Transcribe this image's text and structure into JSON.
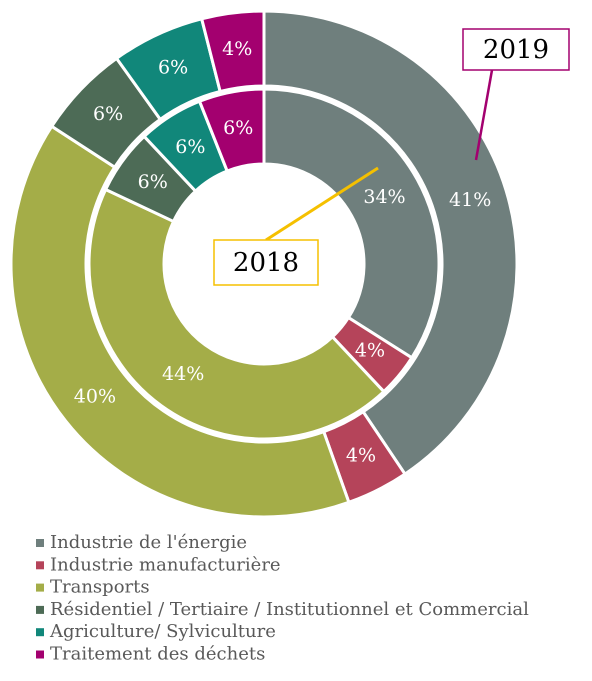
{
  "chart_data": {
    "type": "donut",
    "categories": [
      "Industrie de l'énergie",
      "Industrie manufacturière",
      "Transports",
      "Résidentiel / Tertiaire / Institutionnel et Commercial",
      "Agriculture/ Sylviculture",
      "Traitement des déchets"
    ],
    "colors": [
      "#6f7f7d",
      "#b5445a",
      "#a4ad48",
      "#4d6b56",
      "#11877a",
      "#a3006f"
    ],
    "series": [
      {
        "name": "2019",
        "color": "#a3006f",
        "values": [
          41,
          4,
          40,
          6,
          6,
          4
        ],
        "value_labels": [
          "41%",
          "4%",
          "40%",
          "6%",
          "6%",
          "4%"
        ]
      },
      {
        "name": "2018",
        "color": "#f5c000",
        "values": [
          34,
          4,
          44,
          6,
          6,
          6
        ],
        "value_labels": [
          "34%",
          "4%",
          "44%",
          "6%",
          "6%",
          "6%"
        ]
      }
    ],
    "legend": "bottom"
  }
}
